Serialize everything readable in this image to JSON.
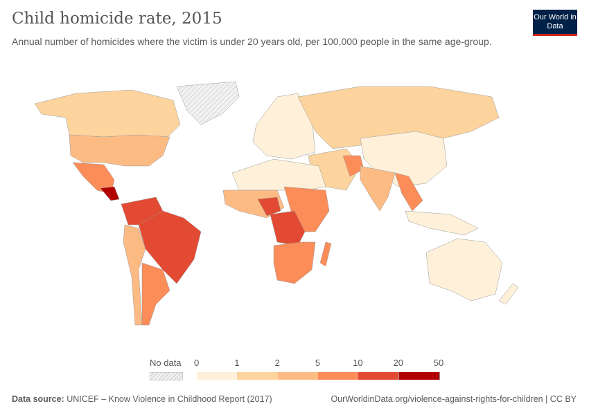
{
  "header": {
    "title": "Child homicide rate, 2015",
    "subtitle": "Annual number of homicides where the victim is under 20 years old, per 100,000 people in the same age-group.",
    "logo": "Our World in Data"
  },
  "legend": {
    "no_data_label": "No data",
    "ticks": [
      "0",
      "1",
      "2",
      "5",
      "10",
      "20",
      "50"
    ],
    "colors": [
      "#fef0d9",
      "#fdd49e",
      "#fdbb84",
      "#fc8d59",
      "#e34a33",
      "#b30000"
    ],
    "no_data_color": "#e8e8e8"
  },
  "footer": {
    "source_label": "Data source:",
    "source": "UNICEF – Know Violence in Childhood Report (2017)",
    "link": "OurWorldinData.org/violence-against-rights-for-children | CC BY"
  }
}
